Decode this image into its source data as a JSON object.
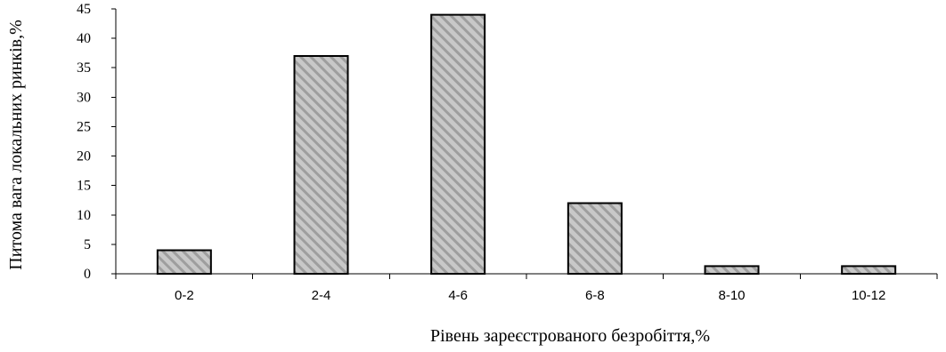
{
  "chart_data": {
    "type": "bar",
    "categories": [
      "0-2",
      "2-4",
      "4-6",
      "6-8",
      "8-10",
      "10-12"
    ],
    "values": [
      4,
      37,
      44,
      12,
      1.3,
      1.3
    ],
    "title": "",
    "xlabel": "Рівень зареєстрованого безробіття,%",
    "ylabel": "Питома вага локальних ринків,%",
    "ylim": [
      0,
      45
    ],
    "yticks": [
      0,
      5,
      10,
      15,
      20,
      25,
      30,
      35,
      40,
      45
    ],
    "grid": false,
    "legend": "none",
    "colors": {
      "bar_fill": "#c8c8c8",
      "bar_stripe": "#9e9e9e",
      "bar_edge": "#000000",
      "axis": "#000000"
    }
  }
}
